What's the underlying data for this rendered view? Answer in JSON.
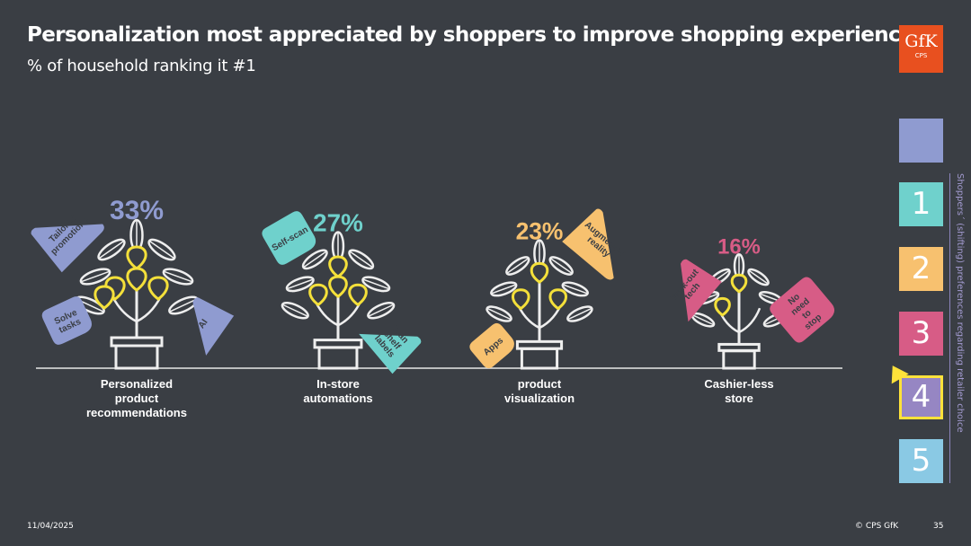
{
  "title": "Personalization most appreciated by shoppers to improve shopping experience",
  "subtitle": "% of household ranking it #1",
  "logo": {
    "brand": "GfK",
    "sub": "CPS"
  },
  "footer": {
    "date": "11/04/2025",
    "copyright": "© CPS GfK",
    "page": "35"
  },
  "sidebar": {
    "label": "Shoppers´ (shifting) preferences regarding retailer choice",
    "steps": [
      "",
      "1",
      "2",
      "3",
      "4",
      "5"
    ],
    "active_index": 4,
    "colors": [
      "#8f9bd0",
      "#6fd1cc",
      "#f7c16f",
      "#d75c86",
      "#9686c3",
      "#8ac9e4"
    ]
  },
  "chart_data": {
    "type": "bar",
    "title": "Personalization most appreciated by shoppers to improve shopping experience",
    "subtitle": "% of household ranking it #1",
    "unit": "%",
    "categories": [
      {
        "lines": [
          "Personalized",
          "product",
          "recommendations"
        ]
      },
      {
        "lines": [
          "In-store",
          "automations"
        ]
      },
      {
        "lines": [
          "product",
          "visualization"
        ]
      },
      {
        "lines": [
          "Cashier-less",
          "store"
        ]
      }
    ],
    "values": [
      33,
      27,
      23,
      16
    ],
    "value_labels": [
      "33%",
      "27%",
      "23%",
      "16%"
    ],
    "colors": [
      "#8f9bd0",
      "#6fd1cc",
      "#f7c16f",
      "#d75c86"
    ],
    "tags": [
      [
        "Tailored promotions",
        "Solve tasks",
        "AI"
      ],
      [
        "Self-scan",
        "Scan shelf labels"
      ],
      [
        "Augmented reality",
        "Apps"
      ],
      [
        "Walk-out tech",
        "No need to stop"
      ]
    ]
  }
}
